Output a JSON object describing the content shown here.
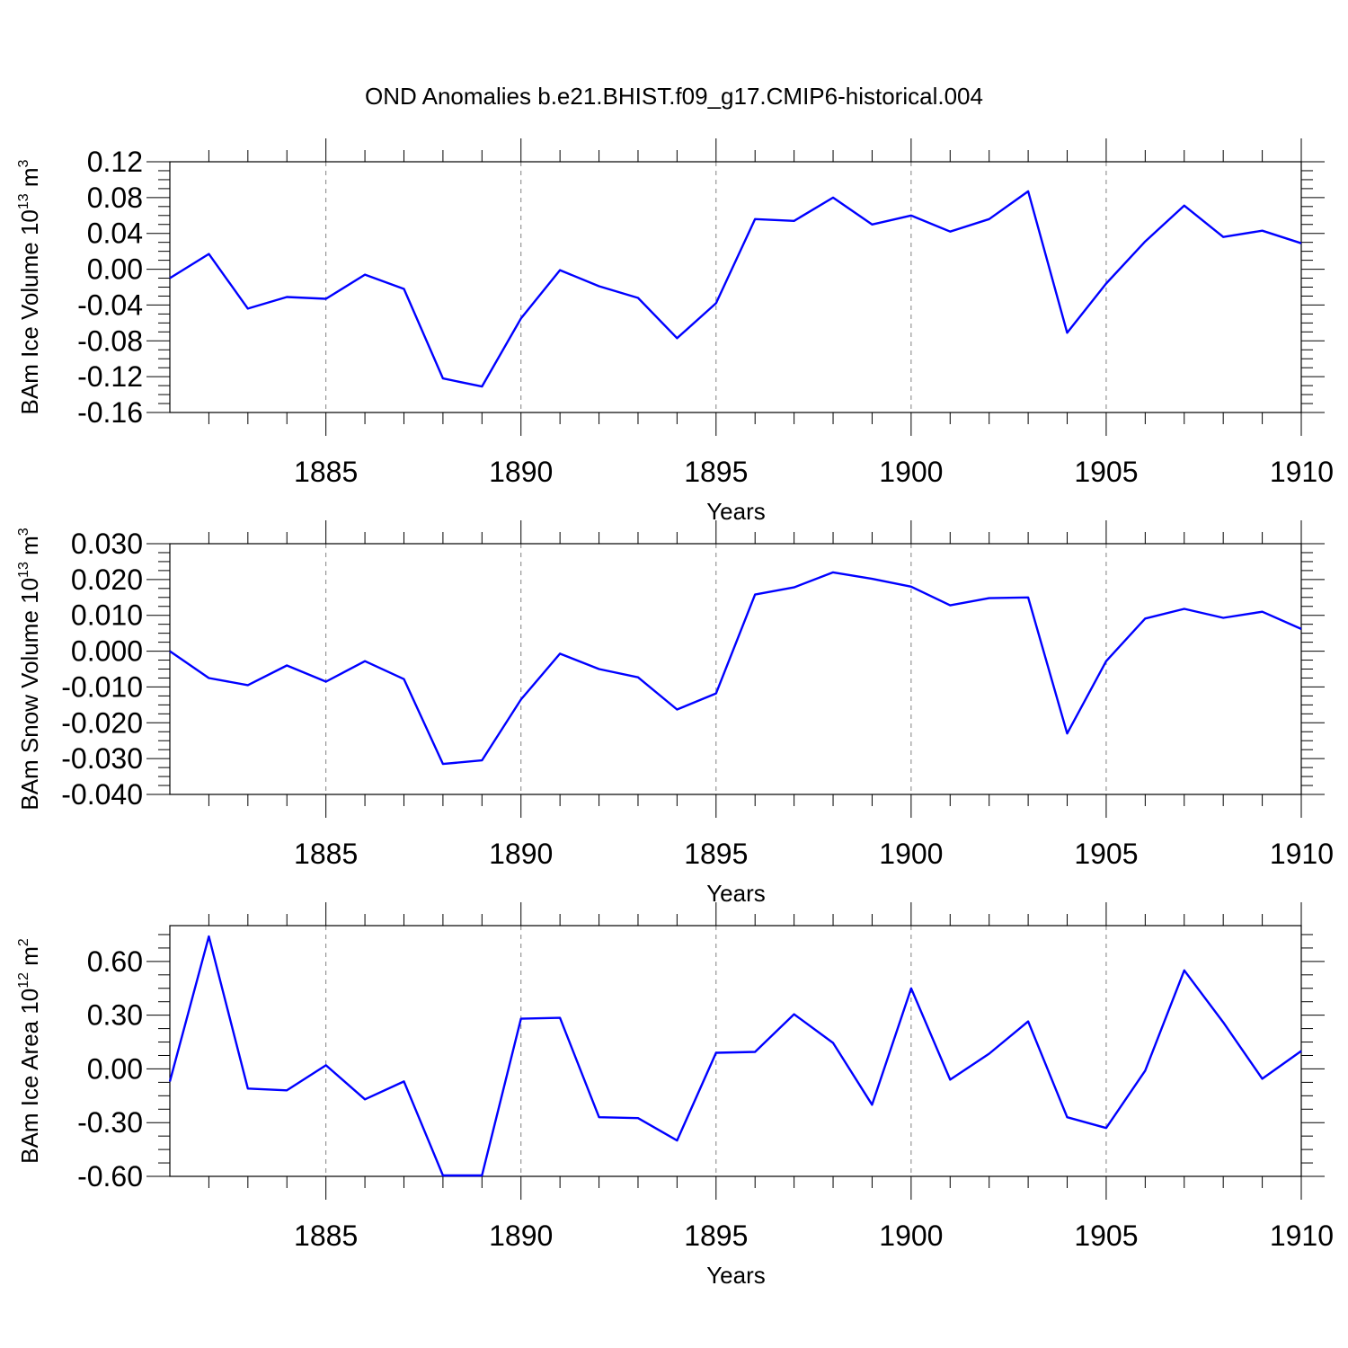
{
  "title": "OND Anomalies b.e21.BHIST.f09_g17.CMIP6-historical.004",
  "colors": {
    "line": "#0000ff",
    "axis": "#000000",
    "grid": "#808080"
  },
  "chart_data": [
    {
      "type": "line",
      "ylabel_main": "BAm Ice Volume 10",
      "ylabel_exp": "13",
      "ylabel_unit": " m",
      "ylabel_unit_exp": "3",
      "xlabel": "Years",
      "xlim": [
        1881,
        1910
      ],
      "ylim": [
        -0.16,
        0.12
      ],
      "yticks": [
        -0.16,
        -0.12,
        -0.08,
        -0.04,
        0.0,
        0.04,
        0.08,
        0.12
      ],
      "ytick_labels": [
        "-0.16",
        "-0.12",
        "-0.08",
        "-0.04",
        "0.00",
        "0.04",
        "0.08",
        "0.12"
      ],
      "xticks": [
        1885,
        1890,
        1895,
        1900,
        1905,
        1910
      ],
      "xtick_labels": [
        "1885",
        "1890",
        "1895",
        "1900",
        "1905",
        "1910"
      ],
      "grid": "vertical dashed at labeled years",
      "x": [
        1881,
        1882,
        1883,
        1884,
        1885,
        1886,
        1887,
        1888,
        1889,
        1890,
        1891,
        1892,
        1893,
        1894,
        1895,
        1896,
        1897,
        1898,
        1899,
        1900,
        1901,
        1902,
        1903,
        1904,
        1905,
        1906,
        1907,
        1908,
        1909,
        1910
      ],
      "series": [
        {
          "values": [
            -0.01,
            0.017,
            -0.044,
            -0.031,
            -0.033,
            -0.006,
            -0.022,
            -0.122,
            -0.131,
            -0.055,
            -0.001,
            -0.019,
            -0.032,
            -0.077,
            -0.038,
            0.056,
            0.054,
            0.08,
            0.05,
            0.06,
            0.042,
            0.056,
            0.087,
            -0.071,
            -0.016,
            0.031,
            0.071,
            0.036,
            0.043,
            0.029
          ]
        }
      ]
    },
    {
      "type": "line",
      "ylabel_main": "BAm Snow Volume 10",
      "ylabel_exp": "13",
      "ylabel_unit": " m",
      "ylabel_unit_exp": "3",
      "xlabel": "Years",
      "xlim": [
        1881,
        1910
      ],
      "ylim": [
        -0.04,
        0.03
      ],
      "yticks": [
        -0.04,
        -0.03,
        -0.02,
        -0.01,
        0.0,
        0.01,
        0.02,
        0.03
      ],
      "ytick_labels": [
        "-0.040",
        "-0.030",
        "-0.020",
        "-0.010",
        "0.000",
        "0.010",
        "0.020",
        "0.030"
      ],
      "xticks": [
        1885,
        1890,
        1895,
        1900,
        1905,
        1910
      ],
      "xtick_labels": [
        "1885",
        "1890",
        "1895",
        "1900",
        "1905",
        "1910"
      ],
      "grid": "vertical dashed at labeled years",
      "x": [
        1881,
        1882,
        1883,
        1884,
        1885,
        1886,
        1887,
        1888,
        1889,
        1890,
        1891,
        1892,
        1893,
        1894,
        1895,
        1896,
        1897,
        1898,
        1899,
        1900,
        1901,
        1902,
        1903,
        1904,
        1905,
        1906,
        1907,
        1908,
        1909,
        1910
      ],
      "series": [
        {
          "values": [
            0.0,
            -0.0075,
            -0.0095,
            -0.004,
            -0.0085,
            -0.0028,
            -0.0078,
            -0.0315,
            -0.0305,
            -0.0135,
            -0.0007,
            -0.005,
            -0.0073,
            -0.0163,
            -0.0118,
            0.0158,
            0.0178,
            0.022,
            0.0202,
            0.018,
            0.0128,
            0.0148,
            0.015,
            -0.023,
            -0.0028,
            0.0091,
            0.0118,
            0.0093,
            0.011,
            0.0062
          ]
        }
      ]
    },
    {
      "type": "line",
      "ylabel_main": "BAm Ice Area 10",
      "ylabel_exp": "12",
      "ylabel_unit": " m",
      "ylabel_unit_exp": "2",
      "xlabel": "Years",
      "xlim": [
        1881,
        1910
      ],
      "ylim": [
        -0.6,
        0.8
      ],
      "yticks": [
        -0.6,
        -0.3,
        0.0,
        0.3,
        0.6
      ],
      "ytick_labels": [
        "-0.60",
        "-0.30",
        "0.00",
        "0.30",
        "0.60"
      ],
      "xticks": [
        1885,
        1890,
        1895,
        1900,
        1905,
        1910
      ],
      "xtick_labels": [
        "1885",
        "1890",
        "1895",
        "1900",
        "1905",
        "1910"
      ],
      "grid": "vertical dashed at labeled years",
      "x": [
        1881,
        1882,
        1883,
        1884,
        1885,
        1886,
        1887,
        1888,
        1889,
        1890,
        1891,
        1892,
        1893,
        1894,
        1895,
        1896,
        1897,
        1898,
        1899,
        1900,
        1901,
        1902,
        1903,
        1904,
        1905,
        1906,
        1907,
        1908,
        1909,
        1910
      ],
      "series": [
        {
          "values": [
            -0.07,
            0.74,
            -0.11,
            -0.12,
            0.02,
            -0.17,
            -0.07,
            -0.595,
            -0.595,
            0.28,
            0.285,
            -0.27,
            -0.275,
            -0.4,
            0.09,
            0.095,
            0.305,
            0.145,
            -0.2,
            0.45,
            -0.06,
            0.085,
            0.265,
            -0.27,
            -0.33,
            -0.01,
            0.55,
            0.26,
            -0.055,
            0.1
          ]
        }
      ]
    }
  ]
}
